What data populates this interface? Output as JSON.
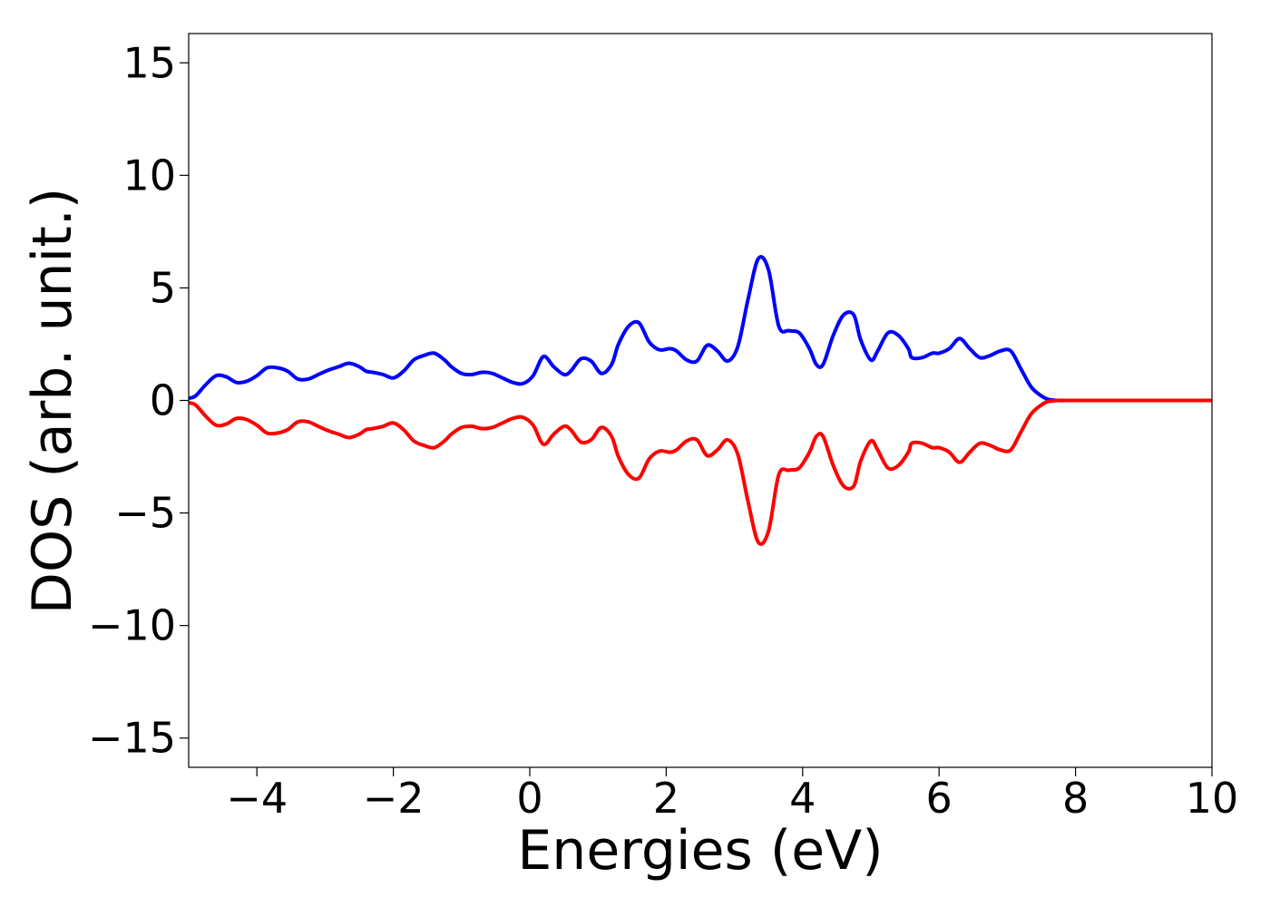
{
  "chart_data": {
    "type": "line",
    "title": "",
    "xlabel": "Energies (eV)",
    "ylabel": "DOS (arb. unit.)",
    "xlim": [
      -5,
      10
    ],
    "ylim": [
      -16.3,
      16.3
    ],
    "grid": false,
    "legend": "none",
    "xticks": [
      -4,
      -2,
      0,
      2,
      4,
      6,
      8,
      10
    ],
    "xtick_labels": [
      "−4",
      "−2",
      "0",
      "2",
      "4",
      "6",
      "8",
      "10"
    ],
    "yticks": [
      15,
      10,
      5,
      0,
      -5,
      -10,
      -15
    ],
    "ytick_labels": [
      "15",
      "10",
      "5",
      "0",
      "−5",
      "−10",
      "−15"
    ],
    "series": [
      {
        "color": "#0000ff",
        "x": [
          -5.0,
          -4.9,
          -4.75,
          -4.6,
          -4.45,
          -4.3,
          -4.15,
          -4.0,
          -3.85,
          -3.7,
          -3.55,
          -3.4,
          -3.25,
          -3.1,
          -2.95,
          -2.8,
          -2.65,
          -2.5,
          -2.4,
          -2.3,
          -2.15,
          -2.0,
          -1.85,
          -1.7,
          -1.55,
          -1.4,
          -1.25,
          -1.15,
          -1.0,
          -0.85,
          -0.7,
          -0.55,
          -0.4,
          -0.25,
          -0.1,
          0.05,
          0.2,
          0.35,
          0.5,
          0.6,
          0.75,
          0.9,
          1.05,
          1.2,
          1.3,
          1.45,
          1.6,
          1.75,
          1.9,
          2.05,
          2.15,
          2.3,
          2.45,
          2.6,
          2.75,
          2.9,
          3.05,
          3.2,
          3.35,
          3.5,
          3.65,
          3.8,
          3.95,
          4.1,
          4.2,
          4.3,
          4.45,
          4.6,
          4.75,
          4.85,
          5.0,
          5.1,
          5.25,
          5.4,
          5.55,
          5.6,
          5.75,
          5.9,
          6.0,
          6.15,
          6.3,
          6.45,
          6.6,
          6.75,
          6.9,
          7.05,
          7.2,
          7.35,
          7.5,
          7.6,
          7.75,
          7.9,
          8.05,
          8.2,
          8.3,
          8.45,
          8.6,
          8.75,
          8.9,
          9.0,
          9.2,
          9.5,
          10.0
        ],
        "y": [
          0.1,
          0.2,
          0.7,
          1.1,
          1.05,
          0.8,
          0.85,
          1.1,
          1.45,
          1.45,
          1.3,
          0.95,
          0.95,
          1.15,
          1.35,
          1.5,
          1.65,
          1.5,
          1.3,
          1.25,
          1.15,
          1.0,
          1.3,
          1.8,
          2.0,
          2.1,
          1.8,
          1.5,
          1.2,
          1.15,
          1.25,
          1.2,
          1.0,
          0.8,
          0.75,
          1.1,
          1.95,
          1.5,
          1.15,
          1.3,
          1.85,
          1.75,
          1.2,
          1.6,
          2.5,
          3.3,
          3.45,
          2.6,
          2.25,
          2.3,
          2.2,
          1.8,
          1.75,
          2.45,
          2.2,
          1.75,
          2.4,
          4.5,
          6.3,
          5.8,
          3.3,
          3.1,
          3.0,
          2.3,
          1.6,
          1.6,
          2.9,
          3.8,
          3.8,
          2.7,
          1.8,
          2.2,
          3.0,
          2.9,
          2.3,
          1.9,
          1.9,
          2.1,
          2.1,
          2.3,
          2.75,
          2.3,
          1.9,
          2.0,
          2.2,
          2.2,
          1.4,
          0.6,
          0.2,
          0.05,
          0.0,
          0.0,
          0.0,
          0.0,
          0.0,
          0.0,
          0.0,
          0.0,
          0.0,
          0.0,
          0.0,
          0.0,
          0.0
        ]
      },
      {
        "color": "#ff0000",
        "x": [
          -5.0,
          -4.9,
          -4.75,
          -4.6,
          -4.45,
          -4.3,
          -4.15,
          -4.0,
          -3.85,
          -3.7,
          -3.55,
          -3.4,
          -3.25,
          -3.1,
          -2.95,
          -2.8,
          -2.65,
          -2.5,
          -2.4,
          -2.3,
          -2.15,
          -2.0,
          -1.85,
          -1.7,
          -1.55,
          -1.4,
          -1.25,
          -1.15,
          -1.0,
          -0.85,
          -0.7,
          -0.55,
          -0.4,
          -0.25,
          -0.1,
          0.05,
          0.2,
          0.35,
          0.5,
          0.6,
          0.75,
          0.9,
          1.05,
          1.2,
          1.3,
          1.45,
          1.6,
          1.75,
          1.9,
          2.05,
          2.15,
          2.3,
          2.45,
          2.6,
          2.75,
          2.9,
          3.05,
          3.2,
          3.35,
          3.5,
          3.65,
          3.8,
          3.95,
          4.1,
          4.2,
          4.3,
          4.45,
          4.6,
          4.75,
          4.85,
          5.0,
          5.1,
          5.25,
          5.4,
          5.55,
          5.6,
          5.75,
          5.9,
          6.0,
          6.15,
          6.3,
          6.45,
          6.6,
          6.75,
          6.9,
          7.05,
          7.2,
          7.35,
          7.5,
          7.6,
          7.75,
          7.9,
          8.05,
          8.2,
          8.3,
          8.45,
          8.6,
          8.75,
          8.9,
          9.0,
          9.2,
          9.5,
          10.0
        ],
        "y": [
          -0.1,
          -0.2,
          -0.7,
          -1.1,
          -1.05,
          -0.8,
          -0.85,
          -1.1,
          -1.45,
          -1.45,
          -1.3,
          -0.95,
          -0.95,
          -1.15,
          -1.35,
          -1.5,
          -1.65,
          -1.5,
          -1.3,
          -1.25,
          -1.15,
          -1.0,
          -1.3,
          -1.8,
          -2.0,
          -2.1,
          -1.8,
          -1.5,
          -1.2,
          -1.15,
          -1.25,
          -1.2,
          -1.0,
          -0.8,
          -0.75,
          -1.1,
          -1.95,
          -1.5,
          -1.15,
          -1.3,
          -1.85,
          -1.75,
          -1.2,
          -1.6,
          -2.5,
          -3.3,
          -3.45,
          -2.6,
          -2.25,
          -2.3,
          -2.2,
          -1.8,
          -1.75,
          -2.45,
          -2.2,
          -1.75,
          -2.4,
          -4.5,
          -6.3,
          -5.8,
          -3.3,
          -3.1,
          -3.0,
          -2.3,
          -1.6,
          -1.6,
          -2.9,
          -3.8,
          -3.8,
          -2.7,
          -1.8,
          -2.2,
          -3.0,
          -2.9,
          -2.3,
          -1.9,
          -1.9,
          -2.1,
          -2.1,
          -2.3,
          -2.75,
          -2.3,
          -1.9,
          -2.0,
          -2.2,
          -2.2,
          -1.4,
          -0.6,
          -0.2,
          -0.05,
          0.0,
          0.0,
          0.0,
          0.0,
          0.0,
          0.0,
          0.0,
          0.0,
          0.0,
          0.0,
          0.0,
          0.0,
          0.0
        ]
      }
    ]
  }
}
